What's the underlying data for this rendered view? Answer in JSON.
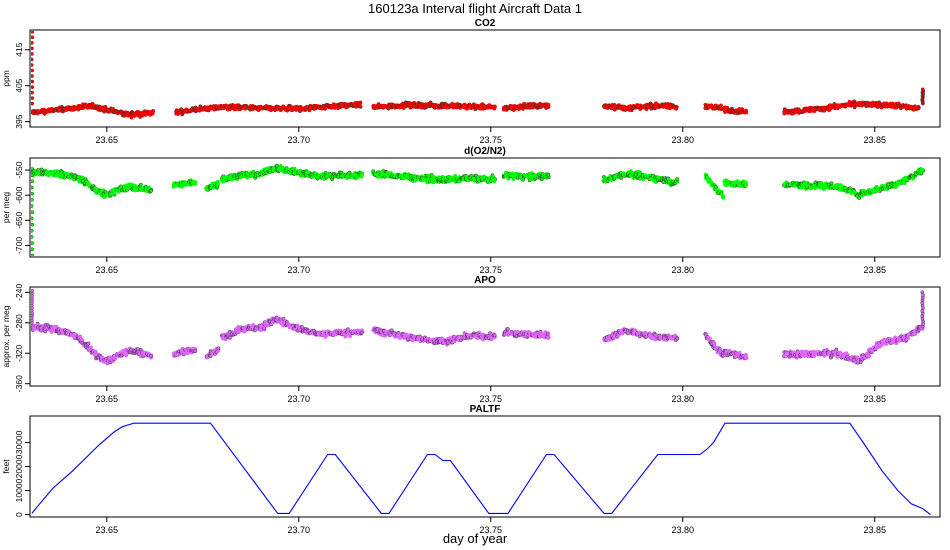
{
  "figure": {
    "title": "160123a   Interval flight Aircraft Data 1",
    "xlabel": "day of year"
  },
  "colors": {
    "co2": "#ff0000",
    "o2n2": "#00ff00",
    "apo": "#e066ff",
    "paltf": "#0000ff",
    "dark_edge": "#333333"
  },
  "chart_data": [
    {
      "type": "scatter",
      "title": "CO2",
      "ylabel": "ppm",
      "x_ticks": [
        "23.65",
        "23.70",
        "23.75",
        "23.80",
        "23.85"
      ],
      "y_ticks": [
        "395",
        "405",
        "415"
      ],
      "xlim": [
        23.63,
        23.867
      ],
      "ylim": [
        393.5,
        420.5
      ],
      "segments": [
        {
          "x": [
            23.6305,
            23.64,
            23.646,
            23.652,
            23.656,
            23.662
          ],
          "y": [
            397.5,
            398.6,
            399.3,
            397.8,
            396.9,
            397.4
          ]
        },
        {
          "x": [
            23.668,
            23.673,
            23.68,
            23.69,
            23.7,
            23.708,
            23.716
          ],
          "y": [
            397.6,
            398.3,
            399.1,
            398.7,
            398.6,
            399.3,
            399.7
          ]
        },
        {
          "x": [
            23.7195,
            23.728,
            23.738,
            23.748,
            23.751
          ],
          "y": [
            399.0,
            399.6,
            399.4,
            399.1,
            398.9
          ]
        },
        {
          "x": [
            23.7535,
            23.758,
            23.765
          ],
          "y": [
            398.7,
            399.2,
            399.5
          ]
        },
        {
          "x": [
            23.7795,
            23.786,
            23.794,
            23.7985
          ],
          "y": [
            399.3,
            398.8,
            399.5,
            399.0
          ]
        },
        {
          "x": [
            23.806,
            23.81
          ],
          "y": [
            399.3,
            398.8
          ]
        },
        {
          "x": [
            23.811,
            23.8165
          ],
          "y": [
            398.2,
            397.8
          ]
        },
        {
          "x": [
            23.8265,
            23.835,
            23.845,
            23.855,
            23.8615
          ],
          "y": [
            397.6,
            398.5,
            399.9,
            399.5,
            398.7
          ]
        }
      ],
      "spikes": [
        {
          "x": 23.6305,
          "y_from": 400,
          "y_to": 420
        },
        {
          "x": 23.8625,
          "y_from": 400,
          "y_to": 404
        }
      ]
    },
    {
      "type": "scatter",
      "title": "d(O2/N2)",
      "ylabel": "per meg",
      "x_ticks": [
        "23.65",
        "23.70",
        "23.75",
        "23.80",
        "23.85"
      ],
      "y_ticks": [
        "-700",
        "-650",
        "-600",
        "-550"
      ],
      "xlim": [
        23.63,
        23.867
      ],
      "ylim": [
        -723,
        -526
      ],
      "segments": [
        {
          "x": [
            23.6305,
            23.638,
            23.643,
            23.647,
            23.65,
            23.656,
            23.6615
          ],
          "y": [
            -553,
            -557,
            -567,
            -590,
            -598,
            -583,
            -590
          ]
        },
        {
          "x": [
            23.6675,
            23.673
          ],
          "y": [
            -580,
            -575
          ]
        },
        {
          "x": [
            23.676,
            23.679
          ],
          "y": [
            -585,
            -578
          ]
        },
        {
          "x": [
            23.68,
            23.685,
            23.69,
            23.694,
            23.7,
            23.705,
            23.7165
          ],
          "y": [
            -568,
            -560,
            -558,
            -545,
            -555,
            -562,
            -560
          ]
        },
        {
          "x": [
            23.7195,
            23.73,
            23.738,
            23.744,
            23.751
          ],
          "y": [
            -556,
            -565,
            -570,
            -566,
            -568
          ]
        },
        {
          "x": [
            23.7535,
            23.758,
            23.765
          ],
          "y": [
            -560,
            -562,
            -563
          ]
        },
        {
          "x": [
            23.7795,
            23.785,
            23.792,
            23.7985
          ],
          "y": [
            -570,
            -558,
            -565,
            -575
          ]
        },
        {
          "x": [
            23.806,
            23.808,
            23.8105
          ],
          "y": [
            -562,
            -582,
            -600
          ]
        },
        {
          "x": [
            23.811,
            23.8165
          ],
          "y": [
            -575,
            -578
          ]
        },
        {
          "x": [
            23.8265,
            23.84,
            23.846,
            23.852,
            23.858,
            23.8625
          ],
          "y": [
            -578,
            -582,
            -598,
            -585,
            -570,
            -550
          ]
        }
      ],
      "spikes": [
        {
          "x": 23.6305,
          "y_from": -560,
          "y_to": -720
        }
      ]
    },
    {
      "type": "scatter",
      "title": "APO",
      "ylabel": "approx. per meg",
      "x_ticks": [
        "23.65",
        "23.70",
        "23.75",
        "23.80",
        "23.85"
      ],
      "y_ticks": [
        "-360",
        "-320",
        "-280",
        "-240"
      ],
      "xlim": [
        23.63,
        23.867
      ],
      "ylim": [
        -363,
        -233
      ],
      "segments": [
        {
          "x": [
            23.6305,
            23.638,
            23.643,
            23.647,
            23.65,
            23.656,
            23.6615
          ],
          "y": [
            -285,
            -290,
            -300,
            -322,
            -330,
            -316,
            -323
          ]
        },
        {
          "x": [
            23.6675,
            23.673
          ],
          "y": [
            -322,
            -316
          ]
        },
        {
          "x": [
            23.676,
            23.679
          ],
          "y": [
            -325,
            -315
          ]
        },
        {
          "x": [
            23.68,
            23.685,
            23.69,
            23.694,
            23.7,
            23.705,
            23.7165
          ],
          "y": [
            -300,
            -288,
            -287,
            -275,
            -288,
            -295,
            -292
          ]
        },
        {
          "x": [
            23.7195,
            23.73,
            23.738,
            23.744,
            23.751
          ],
          "y": [
            -290,
            -300,
            -305,
            -297,
            -298
          ]
        },
        {
          "x": [
            23.7535,
            23.758,
            23.765
          ],
          "y": [
            -293,
            -295,
            -296
          ]
        },
        {
          "x": [
            23.7795,
            23.785,
            23.792,
            23.7985
          ],
          "y": [
            -302,
            -290,
            -298,
            -300
          ]
        },
        {
          "x": [
            23.806,
            23.808,
            23.8105
          ],
          "y": [
            -295,
            -310,
            -322
          ]
        },
        {
          "x": [
            23.811,
            23.8165
          ],
          "y": [
            -318,
            -325
          ]
        },
        {
          "x": [
            23.8265,
            23.84,
            23.846,
            23.852,
            23.858,
            23.8625
          ],
          "y": [
            -322,
            -320,
            -330,
            -305,
            -300,
            -285
          ]
        }
      ],
      "spikes": [
        {
          "x": 23.6305,
          "y_from": -280,
          "y_to": -238
        },
        {
          "x": 23.8625,
          "y_from": -285,
          "y_to": -240
        }
      ]
    },
    {
      "type": "line",
      "title": "PALTF",
      "ylabel": "feet",
      "x_ticks": [
        "23.65",
        "23.70",
        "23.75",
        "23.80",
        "23.85"
      ],
      "y_ticks": [
        "0",
        "10000",
        "20000",
        "30000"
      ],
      "xlim": [
        23.63,
        23.867
      ],
      "ylim": [
        -1000,
        41000
      ],
      "x": [
        23.6305,
        23.632,
        23.636,
        23.641,
        23.648,
        23.652,
        23.654,
        23.657,
        23.677,
        23.6945,
        23.6975,
        23.7075,
        23.7095,
        23.7215,
        23.7235,
        23.7335,
        23.7355,
        23.7375,
        23.7395,
        23.7495,
        23.7525,
        23.7545,
        23.7645,
        23.7665,
        23.7795,
        23.7815,
        23.7935,
        23.8045,
        23.8065,
        23.808,
        23.811,
        23.8435,
        23.847,
        23.852,
        23.856,
        23.8595,
        23.8625,
        23.8645
      ],
      "y": [
        500,
        3500,
        11000,
        18000,
        29000,
        34500,
        36500,
        38000,
        38000,
        500,
        500,
        25000,
        25000,
        500,
        500,
        25000,
        25000,
        22500,
        22500,
        500,
        500,
        500,
        25000,
        25000,
        500,
        500,
        25000,
        25000,
        27500,
        30000,
        38000,
        38000,
        30000,
        18000,
        10000,
        4500,
        2500,
        0
      ]
    }
  ]
}
